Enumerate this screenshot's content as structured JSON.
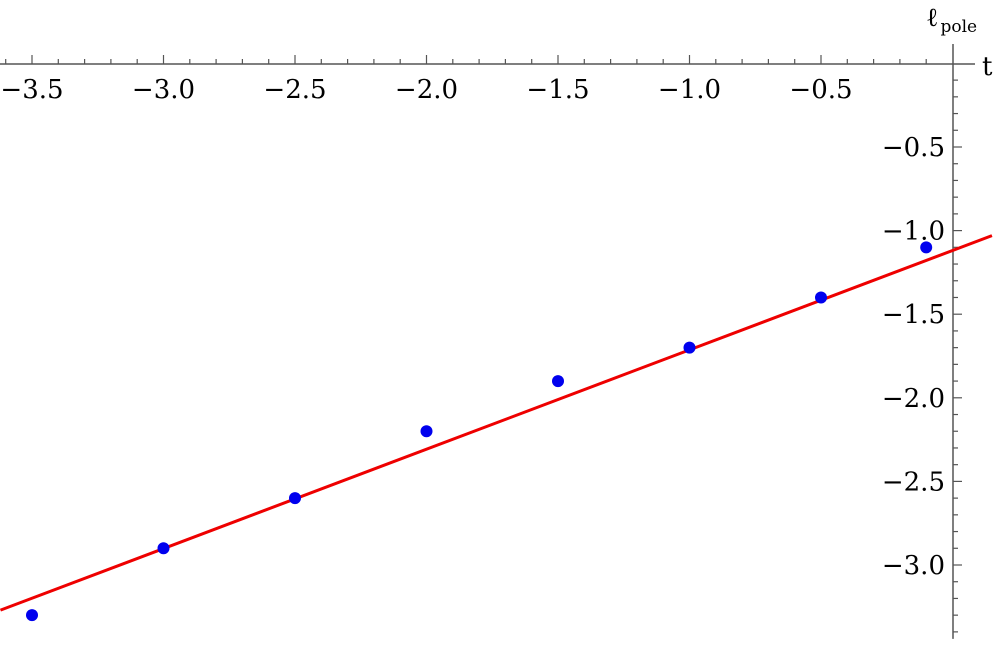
{
  "chart_data": {
    "type": "scatter",
    "title": "",
    "xlabel": "t",
    "ylabel_main": "ℓ",
    "ylabel_sub": "pole",
    "xlim": [
      -3.62,
      0.15
    ],
    "ylim": [
      -3.43,
      0.03
    ],
    "x_ticks": [
      -3.5,
      -3.0,
      -2.5,
      -2.0,
      -1.5,
      -1.0,
      -0.5
    ],
    "x_tick_labels": [
      "−3.5",
      "−3.0",
      "−2.5",
      "−2.0",
      "−1.5",
      "−1.0",
      "−0.5"
    ],
    "y_ticks": [
      -0.5,
      -1.0,
      -1.5,
      -2.0,
      -2.5,
      -3.0
    ],
    "y_tick_labels": [
      "−0.5",
      "−1.0",
      "−1.5",
      "−2.0",
      "−2.5",
      "−3.0"
    ],
    "grid": false,
    "legend": "none",
    "series": [
      {
        "kind": "points",
        "color": "#0000ee",
        "points": [
          {
            "x": -3.5,
            "y": -3.3
          },
          {
            "x": -3.0,
            "y": -2.9
          },
          {
            "x": -2.5,
            "y": -2.6
          },
          {
            "x": -2.0,
            "y": -2.2
          },
          {
            "x": -1.5,
            "y": -1.9
          },
          {
            "x": -1.0,
            "y": -1.7
          },
          {
            "x": -0.5,
            "y": -1.4
          },
          {
            "x": -0.1,
            "y": -1.1
          }
        ]
      },
      {
        "kind": "fit-line",
        "color": "#ee0000",
        "x": [
          -3.62,
          0.15
        ],
        "y": [
          -3.27,
          -1.03
        ]
      }
    ]
  }
}
